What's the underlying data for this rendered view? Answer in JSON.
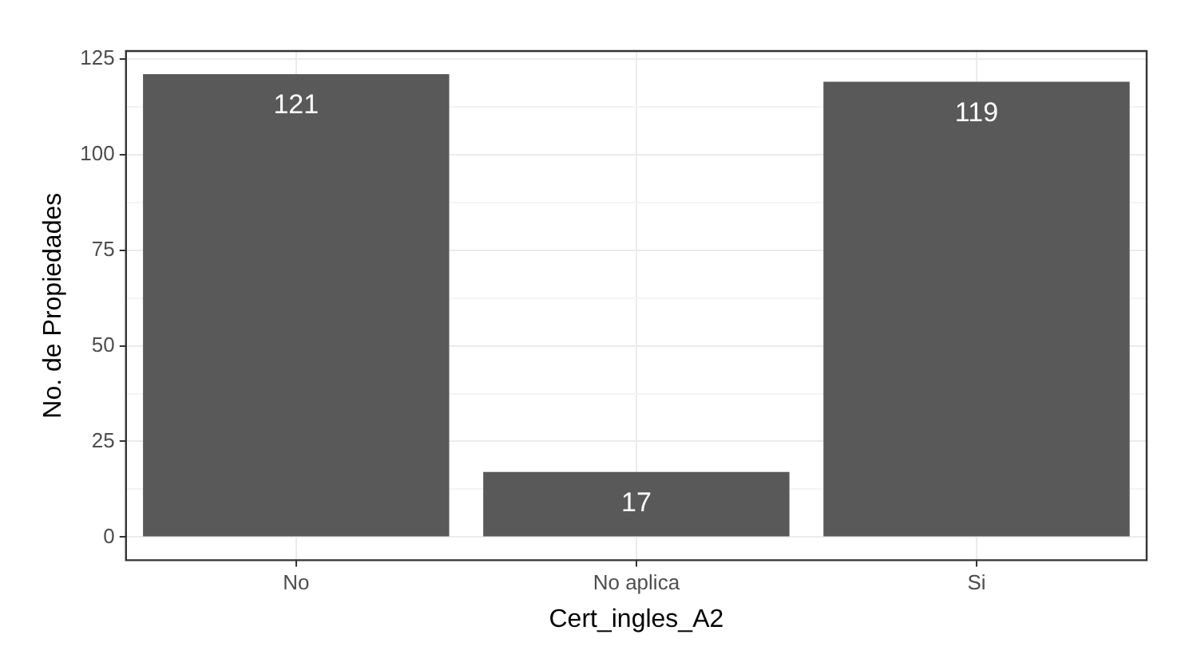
{
  "chart_data": {
    "type": "bar",
    "xlabel": "Cert_ingles_A2",
    "ylabel": "No. de Propiedades",
    "categories": [
      "No",
      "No aplica",
      "Si"
    ],
    "values": [
      121,
      17,
      119
    ],
    "color": "#595959",
    "ylim": [
      -6.05,
      127.05
    ],
    "yticks": [
      0,
      {
        "value": 12.5,
        "label": null
      },
      25,
      {
        "value": 37.5,
        "label": null
      },
      50,
      {
        "value": 62.5,
        "label": null
      },
      75,
      {
        "value": 87.5,
        "label": null
      },
      100,
      {
        "value": 112.5,
        "label": null
      },
      125
    ],
    "grid": true,
    "data_labels": true
  }
}
